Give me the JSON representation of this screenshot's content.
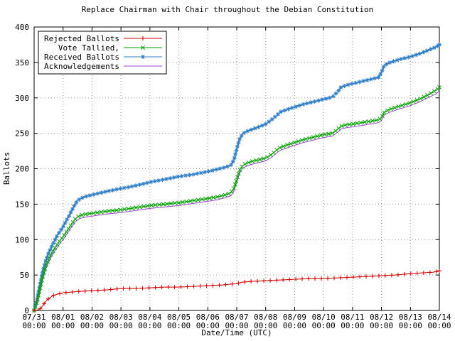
{
  "chart_data": {
    "type": "line",
    "title": "Replace Chairman with Chair throughout the Debian Constitution",
    "xlabel": "Date/Time (UTC)",
    "ylabel": "Ballots",
    "xlim": [
      0,
      14
    ],
    "ylim": [
      0,
      400
    ],
    "grid": true,
    "legend_position": "top-left",
    "y_ticks": [
      0,
      50,
      100,
      150,
      200,
      250,
      300,
      350,
      400
    ],
    "x_ticks": [
      {
        "label": "07/31",
        "sub": "00:00"
      },
      {
        "label": "08/01",
        "sub": "00:00"
      },
      {
        "label": "08/02",
        "sub": "00:00"
      },
      {
        "label": "08/03",
        "sub": "00:00"
      },
      {
        "label": "08/04",
        "sub": "00:00"
      },
      {
        "label": "08/05",
        "sub": "00:00"
      },
      {
        "label": "08/06",
        "sub": "00:00"
      },
      {
        "label": "08/07",
        "sub": "00:00"
      },
      {
        "label": "08/08",
        "sub": "00:00"
      },
      {
        "label": "08/09",
        "sub": "00:00"
      },
      {
        "label": "08/10",
        "sub": "00:00"
      },
      {
        "label": "08/11",
        "sub": "00:00"
      },
      {
        "label": "08/12",
        "sub": "00:00"
      },
      {
        "label": "08/13",
        "sub": "00:00"
      },
      {
        "label": "08/14",
        "sub": "00:00"
      }
    ],
    "series": [
      {
        "name": "Rejected Ballots",
        "color": "#d00000",
        "marker": "plus",
        "points": [
          [
            0,
            0
          ],
          [
            0.15,
            1
          ],
          [
            0.25,
            4
          ],
          [
            0.35,
            10
          ],
          [
            0.45,
            15
          ],
          [
            0.55,
            18
          ],
          [
            0.65,
            21
          ],
          [
            0.8,
            23
          ],
          [
            1.0,
            25
          ],
          [
            1.3,
            26
          ],
          [
            1.6,
            27
          ],
          [
            2.0,
            28
          ],
          [
            2.5,
            29
          ],
          [
            3.0,
            31
          ],
          [
            3.5,
            31
          ],
          [
            4.0,
            32
          ],
          [
            4.5,
            33
          ],
          [
            5.0,
            33
          ],
          [
            5.5,
            34
          ],
          [
            6.0,
            35
          ],
          [
            6.5,
            36
          ],
          [
            7.0,
            38
          ],
          [
            7.2,
            40
          ],
          [
            7.5,
            41
          ],
          [
            8.0,
            42
          ],
          [
            8.5,
            43
          ],
          [
            9.0,
            44
          ],
          [
            9.5,
            45
          ],
          [
            10.0,
            45
          ],
          [
            10.5,
            46
          ],
          [
            11.0,
            47
          ],
          [
            11.5,
            48
          ],
          [
            12.0,
            49
          ],
          [
            12.5,
            50
          ],
          [
            13.0,
            52
          ],
          [
            13.4,
            53
          ],
          [
            13.8,
            54
          ],
          [
            14.0,
            56
          ]
        ]
      },
      {
        "name": "Vote Tallied,",
        "color": "#00a000",
        "marker": "cross",
        "points": [
          [
            0,
            0
          ],
          [
            0.1,
            12
          ],
          [
            0.2,
            30
          ],
          [
            0.3,
            48
          ],
          [
            0.4,
            62
          ],
          [
            0.5,
            72
          ],
          [
            0.6,
            80
          ],
          [
            0.7,
            87
          ],
          [
            0.8,
            93
          ],
          [
            0.9,
            99
          ],
          [
            1.0,
            104
          ],
          [
            1.1,
            110
          ],
          [
            1.2,
            116
          ],
          [
            1.3,
            122
          ],
          [
            1.4,
            128
          ],
          [
            1.5,
            132
          ],
          [
            1.6,
            134
          ],
          [
            1.8,
            136
          ],
          [
            2.0,
            137
          ],
          [
            2.5,
            140
          ],
          [
            3.0,
            142
          ],
          [
            3.5,
            145
          ],
          [
            4.0,
            148
          ],
          [
            4.5,
            150
          ],
          [
            5.0,
            152
          ],
          [
            5.5,
            155
          ],
          [
            6.0,
            158
          ],
          [
            6.3,
            160
          ],
          [
            6.6,
            163
          ],
          [
            6.8,
            166
          ],
          [
            6.9,
            172
          ],
          [
            7.0,
            185
          ],
          [
            7.1,
            198
          ],
          [
            7.2,
            204
          ],
          [
            7.3,
            207
          ],
          [
            7.5,
            210
          ],
          [
            7.7,
            212
          ],
          [
            8.0,
            215
          ],
          [
            8.2,
            220
          ],
          [
            8.4,
            227
          ],
          [
            8.5,
            230
          ],
          [
            8.7,
            233
          ],
          [
            9.0,
            237
          ],
          [
            9.3,
            241
          ],
          [
            9.6,
            244
          ],
          [
            10.0,
            248
          ],
          [
            10.3,
            250
          ],
          [
            10.5,
            256
          ],
          [
            10.6,
            260
          ],
          [
            10.8,
            262
          ],
          [
            11.0,
            263
          ],
          [
            11.3,
            265
          ],
          [
            11.6,
            267
          ],
          [
            11.9,
            269
          ],
          [
            12.0,
            272
          ],
          [
            12.1,
            280
          ],
          [
            12.3,
            284
          ],
          [
            12.6,
            288
          ],
          [
            13.0,
            293
          ],
          [
            13.3,
            298
          ],
          [
            13.6,
            304
          ],
          [
            13.9,
            311
          ],
          [
            14.0,
            315
          ]
        ]
      },
      {
        "name": "Received Ballots",
        "color": "#2f7ec7",
        "marker": "star",
        "points": [
          [
            0,
            0
          ],
          [
            0.1,
            15
          ],
          [
            0.2,
            36
          ],
          [
            0.3,
            56
          ],
          [
            0.4,
            70
          ],
          [
            0.5,
            81
          ],
          [
            0.6,
            90
          ],
          [
            0.7,
            98
          ],
          [
            0.8,
            106
          ],
          [
            0.9,
            112
          ],
          [
            1.0,
            118
          ],
          [
            1.1,
            126
          ],
          [
            1.2,
            133
          ],
          [
            1.3,
            141
          ],
          [
            1.4,
            149
          ],
          [
            1.5,
            155
          ],
          [
            1.6,
            158
          ],
          [
            1.8,
            161
          ],
          [
            2.0,
            163
          ],
          [
            2.5,
            168
          ],
          [
            3.0,
            172
          ],
          [
            3.5,
            176
          ],
          [
            4.0,
            181
          ],
          [
            4.5,
            185
          ],
          [
            5.0,
            189
          ],
          [
            5.5,
            192
          ],
          [
            6.0,
            196
          ],
          [
            6.3,
            199
          ],
          [
            6.6,
            202
          ],
          [
            6.8,
            205
          ],
          [
            6.9,
            212
          ],
          [
            7.0,
            228
          ],
          [
            7.1,
            242
          ],
          [
            7.2,
            249
          ],
          [
            7.3,
            252
          ],
          [
            7.5,
            255
          ],
          [
            7.7,
            258
          ],
          [
            8.0,
            263
          ],
          [
            8.2,
            269
          ],
          [
            8.4,
            276
          ],
          [
            8.5,
            280
          ],
          [
            8.7,
            283
          ],
          [
            9.0,
            287
          ],
          [
            9.3,
            291
          ],
          [
            9.6,
            294
          ],
          [
            10.0,
            298
          ],
          [
            10.3,
            301
          ],
          [
            10.5,
            309
          ],
          [
            10.6,
            315
          ],
          [
            10.8,
            318
          ],
          [
            11.0,
            320
          ],
          [
            11.3,
            323
          ],
          [
            11.6,
            326
          ],
          [
            11.9,
            329
          ],
          [
            12.0,
            336
          ],
          [
            12.1,
            346
          ],
          [
            12.3,
            350
          ],
          [
            12.6,
            354
          ],
          [
            13.0,
            358
          ],
          [
            13.3,
            362
          ],
          [
            13.6,
            367
          ],
          [
            13.9,
            372
          ],
          [
            14.0,
            375
          ]
        ]
      },
      {
        "name": "Acknowledgements",
        "color": "#a040d0",
        "marker": "none",
        "points": [
          [
            0,
            0
          ],
          [
            0.1,
            9
          ],
          [
            0.2,
            26
          ],
          [
            0.3,
            44
          ],
          [
            0.4,
            58
          ],
          [
            0.5,
            68
          ],
          [
            0.6,
            76
          ],
          [
            0.7,
            83
          ],
          [
            0.8,
            89
          ],
          [
            0.9,
            95
          ],
          [
            1.0,
            100
          ],
          [
            1.1,
            106
          ],
          [
            1.2,
            112
          ],
          [
            1.3,
            118
          ],
          [
            1.4,
            124
          ],
          [
            1.5,
            128
          ],
          [
            1.6,
            130
          ],
          [
            1.8,
            132
          ],
          [
            2.0,
            133
          ],
          [
            2.5,
            136
          ],
          [
            3.0,
            138
          ],
          [
            3.5,
            141
          ],
          [
            4.0,
            144
          ],
          [
            4.5,
            146
          ],
          [
            5.0,
            148
          ],
          [
            5.5,
            151
          ],
          [
            6.0,
            154
          ],
          [
            6.3,
            156
          ],
          [
            6.6,
            159
          ],
          [
            6.8,
            162
          ],
          [
            6.9,
            168
          ],
          [
            7.0,
            181
          ],
          [
            7.1,
            194
          ],
          [
            7.2,
            200
          ],
          [
            7.3,
            203
          ],
          [
            7.5,
            206
          ],
          [
            7.7,
            208
          ],
          [
            8.0,
            211
          ],
          [
            8.2,
            216
          ],
          [
            8.4,
            223
          ],
          [
            8.5,
            226
          ],
          [
            8.7,
            229
          ],
          [
            9.0,
            233
          ],
          [
            9.3,
            237
          ],
          [
            9.6,
            240
          ],
          [
            10.0,
            244
          ],
          [
            10.3,
            246
          ],
          [
            10.5,
            252
          ],
          [
            10.6,
            256
          ],
          [
            10.8,
            258
          ],
          [
            11.0,
            259
          ],
          [
            11.3,
            261
          ],
          [
            11.6,
            263
          ],
          [
            11.9,
            265
          ],
          [
            12.0,
            268
          ],
          [
            12.1,
            276
          ],
          [
            12.3,
            280
          ],
          [
            12.6,
            284
          ],
          [
            13.0,
            289
          ],
          [
            13.3,
            294
          ],
          [
            13.6,
            300
          ],
          [
            13.9,
            306
          ],
          [
            14.0,
            310
          ]
        ]
      }
    ]
  }
}
